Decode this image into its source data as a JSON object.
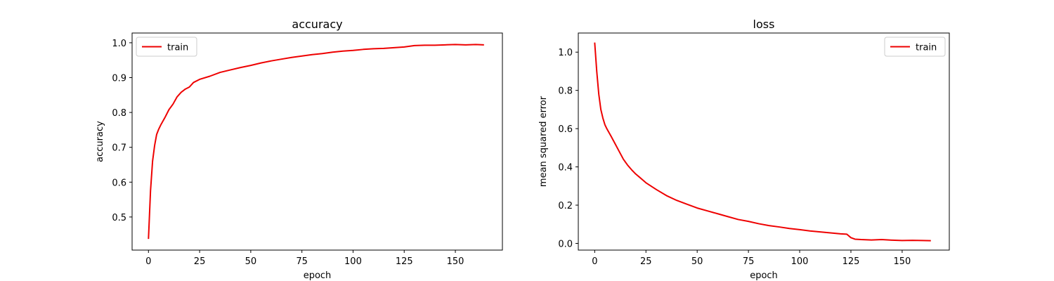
{
  "colors": {
    "train_line": "#ee0000",
    "axes": "#000000",
    "legend_border": "#cccccc"
  },
  "chart_data": [
    {
      "type": "line",
      "title": "accuracy",
      "xlabel": "epoch",
      "ylabel": "accuracy",
      "xlim": [
        -8,
        173
      ],
      "ylim": [
        0.405,
        1.028
      ],
      "xticks": [
        0,
        25,
        50,
        75,
        100,
        125,
        150
      ],
      "xtick_labels": [
        "0",
        "25",
        "50",
        "75",
        "100",
        "125",
        "150"
      ],
      "yticks": [
        0.5,
        0.6,
        0.7,
        0.8,
        0.9,
        1.0
      ],
      "ytick_labels": [
        "0.5",
        "0.6",
        "0.7",
        "0.8",
        "0.9",
        "1.0"
      ],
      "grid": false,
      "legend_position": "upper left",
      "series": [
        {
          "name": "train",
          "x": [
            0,
            1,
            2,
            3,
            4,
            5,
            6,
            8,
            10,
            12,
            14,
            16,
            18,
            20,
            22,
            25,
            30,
            35,
            40,
            45,
            50,
            55,
            60,
            65,
            70,
            75,
            80,
            85,
            90,
            95,
            100,
            105,
            110,
            115,
            120,
            125,
            130,
            135,
            140,
            145,
            150,
            155,
            160,
            164
          ],
          "values": [
            0.437,
            0.575,
            0.66,
            0.705,
            0.737,
            0.752,
            0.764,
            0.785,
            0.808,
            0.824,
            0.845,
            0.858,
            0.867,
            0.873,
            0.886,
            0.895,
            0.904,
            0.915,
            0.922,
            0.929,
            0.935,
            0.942,
            0.948,
            0.953,
            0.958,
            0.962,
            0.966,
            0.969,
            0.973,
            0.976,
            0.978,
            0.981,
            0.983,
            0.984,
            0.986,
            0.988,
            0.992,
            0.993,
            0.993,
            0.994,
            0.995,
            0.994,
            0.995,
            0.994
          ]
        }
      ]
    },
    {
      "type": "line",
      "title": "loss",
      "xlabel": "epoch",
      "ylabel": "mean squared error",
      "xlim": [
        -8,
        173
      ],
      "ylim": [
        -0.035,
        1.1
      ],
      "xticks": [
        0,
        25,
        50,
        75,
        100,
        125,
        150
      ],
      "xtick_labels": [
        "0",
        "25",
        "50",
        "75",
        "100",
        "125",
        "150"
      ],
      "yticks": [
        0.0,
        0.2,
        0.4,
        0.6,
        0.8,
        1.0
      ],
      "ytick_labels": [
        "0.0",
        "0.2",
        "0.4",
        "0.6",
        "0.8",
        "1.0"
      ],
      "grid": false,
      "legend_position": "upper right",
      "series": [
        {
          "name": "train",
          "x": [
            0,
            1,
            2,
            3,
            4,
            5,
            6,
            8,
            10,
            12,
            14,
            16,
            18,
            20,
            22,
            25,
            30,
            35,
            40,
            45,
            50,
            55,
            60,
            65,
            70,
            75,
            80,
            85,
            90,
            95,
            100,
            105,
            110,
            115,
            120,
            123,
            125,
            127,
            130,
            135,
            140,
            145,
            150,
            155,
            160,
            164
          ],
          "values": [
            1.05,
            0.9,
            0.78,
            0.7,
            0.655,
            0.62,
            0.598,
            0.56,
            0.52,
            0.48,
            0.44,
            0.41,
            0.385,
            0.363,
            0.345,
            0.317,
            0.282,
            0.25,
            0.225,
            0.205,
            0.185,
            0.17,
            0.155,
            0.14,
            0.125,
            0.115,
            0.103,
            0.093,
            0.086,
            0.078,
            0.072,
            0.065,
            0.06,
            0.055,
            0.05,
            0.048,
            0.03,
            0.022,
            0.02,
            0.018,
            0.02,
            0.017,
            0.015,
            0.016,
            0.015,
            0.014
          ]
        }
      ]
    }
  ]
}
